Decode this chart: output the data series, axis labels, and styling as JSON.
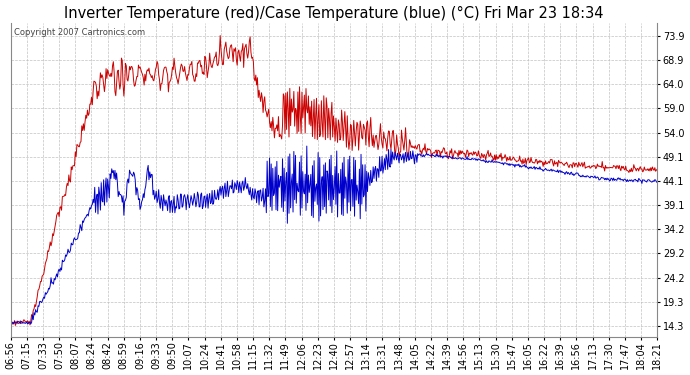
{
  "title": "Inverter Temperature (red)/Case Temperature (blue) (°C) Fri Mar 23 18:34",
  "copyright_text": "Copyright 2007 Cartronics.com",
  "y_ticks": [
    14.3,
    19.3,
    24.2,
    29.2,
    34.2,
    39.1,
    44.1,
    49.1,
    54.0,
    59.0,
    64.0,
    68.9,
    73.9
  ],
  "y_min": 12.0,
  "y_max": 76.5,
  "x_labels": [
    "06:56",
    "07:15",
    "07:33",
    "07:50",
    "08:07",
    "08:24",
    "08:42",
    "08:59",
    "09:16",
    "09:33",
    "09:50",
    "10:07",
    "10:24",
    "10:41",
    "10:58",
    "11:15",
    "11:32",
    "11:49",
    "12:06",
    "12:23",
    "12:40",
    "12:57",
    "13:14",
    "13:31",
    "13:48",
    "14:05",
    "14:22",
    "14:39",
    "14:56",
    "15:13",
    "15:30",
    "15:47",
    "16:05",
    "16:22",
    "16:39",
    "16:56",
    "17:13",
    "17:30",
    "17:47",
    "18:04",
    "18:21"
  ],
  "red_color": "#cc0000",
  "blue_color": "#0000cc",
  "bg_color": "#ffffff",
  "plot_bg_color": "#ffffff",
  "grid_color": "#bbbbbb",
  "title_fontsize": 10.5,
  "tick_fontsize": 7
}
